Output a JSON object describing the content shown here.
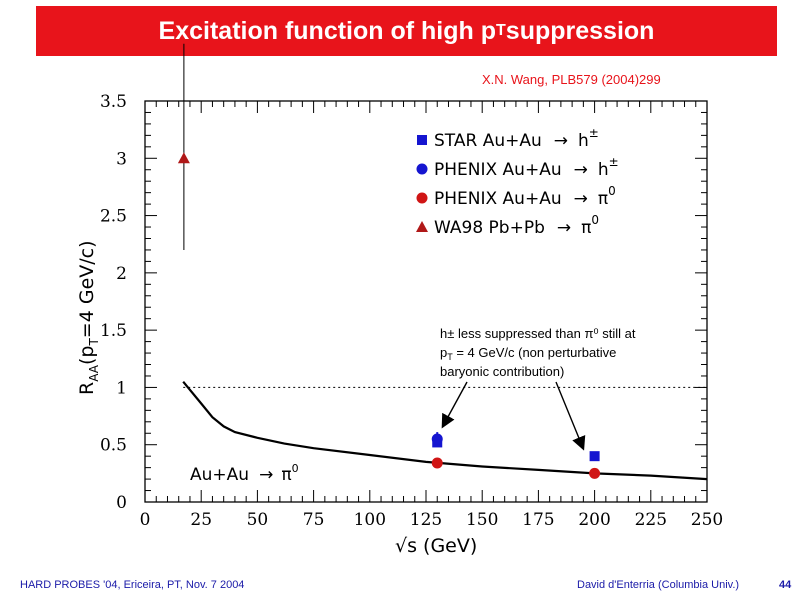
{
  "slide": {
    "title_main": "Excitation function of high p",
    "title_sub": "T",
    "title_tail": " suppression",
    "reference": "X.N. Wang, PLB579 (2004)299",
    "footer_left": "HARD PROBES '04, Ericeira, PT, Nov. 7 2004",
    "footer_right": "David d'Enterria (Columbia Univ.)",
    "page_number": "44"
  },
  "chart_data": {
    "type": "scatter",
    "xlabel": "√s (GeV)",
    "ylabel": "R_AA(p_T=4 GeV/c)",
    "xlim": [
      0,
      250
    ],
    "ylim": [
      0,
      3.5
    ],
    "x_ticks": [
      "0",
      "25",
      "50",
      "75",
      "100",
      "125",
      "150",
      "175",
      "200",
      "225",
      "250"
    ],
    "y_ticks": [
      "0",
      "0.5",
      "1",
      "1.5",
      "2",
      "2.5",
      "3",
      "3.5"
    ],
    "reference_line": {
      "y": 1,
      "style": "dotted"
    },
    "series": [
      {
        "name": "STAR Au+Au → h±",
        "marker": "square",
        "color": "#1515d0",
        "points": [
          {
            "x": 130,
            "y": 0.52
          },
          {
            "x": 200,
            "y": 0.4
          }
        ]
      },
      {
        "name": "PHENIX Au+Au → h±",
        "marker": "circle",
        "color": "#1515d0",
        "points": [
          {
            "x": 130,
            "y": 0.55,
            "err": 0.06
          }
        ]
      },
      {
        "name": "PHENIX Au+Au → π0",
        "marker": "circle",
        "color": "#d01515",
        "points": [
          {
            "x": 130,
            "y": 0.34
          },
          {
            "x": 200,
            "y": 0.25
          }
        ]
      },
      {
        "name": "WA98 Pb+Pb → π0",
        "marker": "triangle",
        "color": "#b01818",
        "points": [
          {
            "x": 17.3,
            "y": 3.0,
            "err_low": 0.8,
            "err_high": 1.0
          }
        ]
      }
    ],
    "theory_curve": {
      "name": "Au+Au → π0",
      "x": [
        17,
        25,
        30,
        35,
        40,
        50,
        62,
        75,
        100,
        125,
        150,
        175,
        200,
        225,
        250
      ],
      "y": [
        1.05,
        0.86,
        0.74,
        0.66,
        0.61,
        0.56,
        0.51,
        0.47,
        0.41,
        0.35,
        0.31,
        0.28,
        0.25,
        0.23,
        0.2
      ]
    },
    "curve_label": {
      "main": "Au+Au",
      "arrow": "→",
      "particle": "π",
      "sup": "0"
    },
    "annotation": {
      "line1": "h± less suppressed than π⁰ still at",
      "line2_main": "p",
      "line2_sub": "T",
      "line2_rest": " = 4 GeV/c (non perturbative",
      "line3": "baryonic contribution)"
    },
    "legend": {
      "placement": "top-right",
      "entries": [
        {
          "marker": "square",
          "color": "#1515d0",
          "label": "STAR Au+Au",
          "arrow": "→",
          "particle": "h",
          "sup": "±"
        },
        {
          "marker": "circle",
          "color": "#1515d0",
          "label": "PHENIX Au+Au",
          "arrow": "→",
          "particle": "h",
          "sup": "±"
        },
        {
          "marker": "circle",
          "color": "#d01515",
          "label": "PHENIX Au+Au",
          "arrow": "→",
          "particle": "π",
          "sup": "0"
        },
        {
          "marker": "triangle",
          "color": "#b01818",
          "label": "WA98 Pb+Pb",
          "arrow": "→",
          "particle": "π",
          "sup": "0"
        }
      ]
    },
    "ylabel_parts": {
      "R": "R",
      "sub": "AA",
      "open": "(p",
      "psub": "T",
      "rest": "=4 GeV/c)"
    }
  }
}
